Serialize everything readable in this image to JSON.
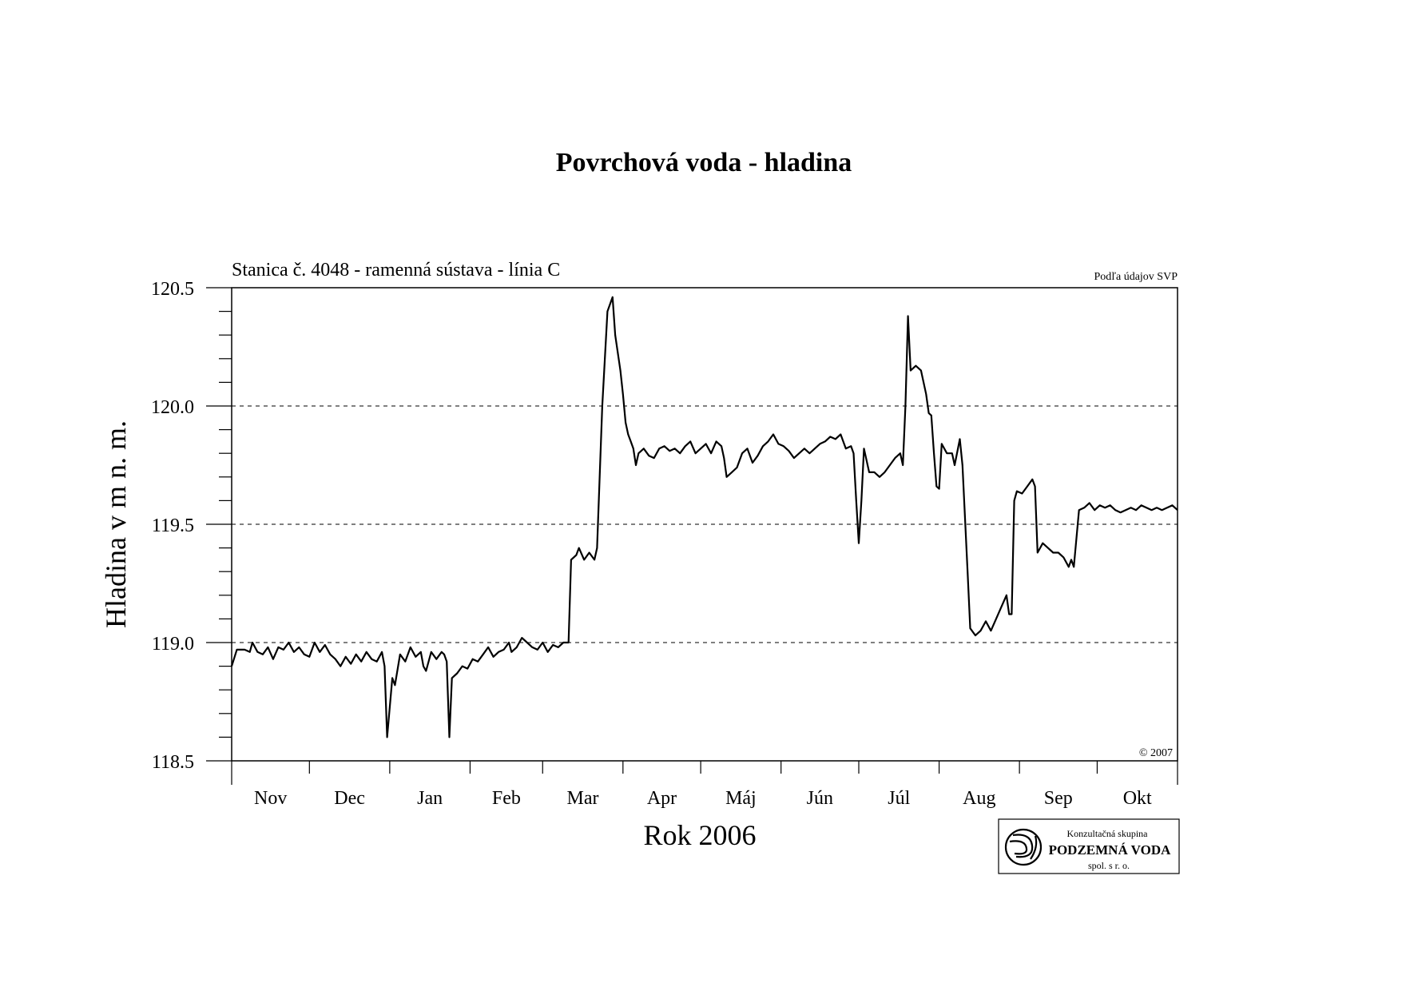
{
  "chart_data": {
    "type": "line",
    "title": "Povrchová voda - hladina",
    "subtitle": "Stanica č. 4048 - ramenná sústava - línia C",
    "source_note": "Podľa údajov SVP",
    "copyright": "© 2007",
    "xlabel": "Rok 2006",
    "ylabel": "Hladina v m n. m.",
    "ylim": [
      118.5,
      120.5
    ],
    "yticks": [
      "118.5",
      "119.0",
      "119.5",
      "120.0",
      "120.5"
    ],
    "grid": "horizontal dashed at 119.0, 119.5, 120.0, 120.5",
    "months": [
      "Nov",
      "Dec",
      "Jan",
      "Feb",
      "Mar",
      "Apr",
      "Máj",
      "Jún",
      "Júl",
      "Aug",
      "Sep",
      "Okt"
    ],
    "x_unit": "day index from 1 Nov 2005 (0-365)",
    "series": [
      {
        "values": [
          [
            0,
            118.9
          ],
          [
            2,
            118.97
          ],
          [
            5,
            118.97
          ],
          [
            7,
            118.96
          ],
          [
            8,
            119.0
          ],
          [
            10,
            118.96
          ],
          [
            12,
            118.95
          ],
          [
            14,
            118.98
          ],
          [
            16,
            118.93
          ],
          [
            18,
            118.98
          ],
          [
            20,
            118.97
          ],
          [
            22,
            119.0
          ],
          [
            24,
            118.96
          ],
          [
            26,
            118.98
          ],
          [
            28,
            118.95
          ],
          [
            30,
            118.94
          ],
          [
            32,
            119.0
          ],
          [
            34,
            118.96
          ],
          [
            36,
            118.99
          ],
          [
            38,
            118.95
          ],
          [
            40,
            118.93
          ],
          [
            42,
            118.9
          ],
          [
            44,
            118.94
          ],
          [
            46,
            118.91
          ],
          [
            48,
            118.95
          ],
          [
            50,
            118.92
          ],
          [
            52,
            118.96
          ],
          [
            54,
            118.93
          ],
          [
            56,
            118.92
          ],
          [
            58,
            118.96
          ],
          [
            59,
            118.9
          ],
          [
            60,
            118.6
          ],
          [
            62,
            118.85
          ],
          [
            63,
            118.82
          ],
          [
            65,
            118.95
          ],
          [
            67,
            118.92
          ],
          [
            69,
            118.98
          ],
          [
            71,
            118.94
          ],
          [
            73,
            118.96
          ],
          [
            74,
            118.9
          ],
          [
            75,
            118.88
          ],
          [
            77,
            118.96
          ],
          [
            79,
            118.93
          ],
          [
            81,
            118.96
          ],
          [
            82,
            118.95
          ],
          [
            83,
            118.92
          ],
          [
            84,
            118.6
          ],
          [
            85,
            118.85
          ],
          [
            87,
            118.87
          ],
          [
            89,
            118.9
          ],
          [
            91,
            118.89
          ],
          [
            93,
            118.93
          ],
          [
            95,
            118.92
          ],
          [
            97,
            118.95
          ],
          [
            99,
            118.98
          ],
          [
            101,
            118.94
          ],
          [
            103,
            118.96
          ],
          [
            105,
            118.97
          ],
          [
            107,
            119.0
          ],
          [
            108,
            118.96
          ],
          [
            110,
            118.98
          ],
          [
            112,
            119.02
          ],
          [
            114,
            119.0
          ],
          [
            116,
            118.98
          ],
          [
            118,
            118.97
          ],
          [
            120,
            119.0
          ],
          [
            122,
            118.96
          ],
          [
            124,
            118.99
          ],
          [
            126,
            118.98
          ],
          [
            128,
            119.0
          ],
          [
            130,
            119.0
          ],
          [
            131,
            119.35
          ],
          [
            133,
            119.37
          ],
          [
            134,
            119.4
          ],
          [
            136,
            119.35
          ],
          [
            138,
            119.38
          ],
          [
            140,
            119.35
          ],
          [
            141,
            119.4
          ],
          [
            143,
            120.0
          ],
          [
            145,
            120.4
          ],
          [
            147,
            120.46
          ],
          [
            148,
            120.3
          ],
          [
            150,
            120.15
          ],
          [
            151,
            120.05
          ],
          [
            152,
            119.93
          ],
          [
            153,
            119.88
          ],
          [
            154,
            119.85
          ],
          [
            155,
            119.82
          ],
          [
            156,
            119.75
          ],
          [
            157,
            119.8
          ],
          [
            159,
            119.82
          ],
          [
            161,
            119.79
          ],
          [
            163,
            119.78
          ],
          [
            165,
            119.82
          ],
          [
            167,
            119.83
          ],
          [
            169,
            119.81
          ],
          [
            171,
            119.82
          ],
          [
            173,
            119.8
          ],
          [
            175,
            119.83
          ],
          [
            177,
            119.85
          ],
          [
            179,
            119.8
          ],
          [
            181,
            119.82
          ],
          [
            183,
            119.84
          ],
          [
            185,
            119.8
          ],
          [
            187,
            119.85
          ],
          [
            189,
            119.83
          ],
          [
            190,
            119.78
          ],
          [
            191,
            119.7
          ],
          [
            193,
            119.72
          ],
          [
            195,
            119.74
          ],
          [
            197,
            119.8
          ],
          [
            199,
            119.82
          ],
          [
            201,
            119.76
          ],
          [
            203,
            119.79
          ],
          [
            205,
            119.83
          ],
          [
            207,
            119.85
          ],
          [
            209,
            119.88
          ],
          [
            211,
            119.84
          ],
          [
            213,
            119.83
          ],
          [
            215,
            119.81
          ],
          [
            217,
            119.78
          ],
          [
            219,
            119.8
          ],
          [
            221,
            119.82
          ],
          [
            223,
            119.8
          ],
          [
            225,
            119.82
          ],
          [
            227,
            119.84
          ],
          [
            229,
            119.85
          ],
          [
            231,
            119.87
          ],
          [
            233,
            119.86
          ],
          [
            235,
            119.88
          ],
          [
            237,
            119.82
          ],
          [
            239,
            119.83
          ],
          [
            240,
            119.8
          ],
          [
            241,
            119.6
          ],
          [
            242,
            119.42
          ],
          [
            243,
            119.6
          ],
          [
            244,
            119.82
          ],
          [
            246,
            119.72
          ],
          [
            248,
            119.72
          ],
          [
            250,
            119.7
          ],
          [
            252,
            119.72
          ],
          [
            254,
            119.75
          ],
          [
            256,
            119.78
          ],
          [
            258,
            119.8
          ],
          [
            259,
            119.75
          ],
          [
            260,
            120.0
          ],
          [
            261,
            120.38
          ],
          [
            262,
            120.15
          ],
          [
            264,
            120.17
          ],
          [
            266,
            120.15
          ],
          [
            268,
            120.05
          ],
          [
            269,
            119.97
          ],
          [
            270,
            119.96
          ],
          [
            271,
            119.8
          ],
          [
            272,
            119.66
          ],
          [
            273,
            119.65
          ],
          [
            274,
            119.84
          ],
          [
            276,
            119.8
          ],
          [
            278,
            119.8
          ],
          [
            279,
            119.75
          ],
          [
            281,
            119.86
          ],
          [
            282,
            119.75
          ],
          [
            284,
            119.3
          ],
          [
            285,
            119.06
          ],
          [
            287,
            119.03
          ],
          [
            289,
            119.05
          ],
          [
            291,
            119.09
          ],
          [
            293,
            119.05
          ],
          [
            295,
            119.1
          ],
          [
            297,
            119.15
          ],
          [
            299,
            119.2
          ],
          [
            300,
            119.12
          ],
          [
            301,
            119.12
          ],
          [
            302,
            119.6
          ],
          [
            303,
            119.64
          ],
          [
            305,
            119.63
          ],
          [
            307,
            119.66
          ],
          [
            309,
            119.69
          ],
          [
            310,
            119.66
          ],
          [
            311,
            119.38
          ],
          [
            313,
            119.42
          ],
          [
            315,
            119.4
          ],
          [
            317,
            119.38
          ],
          [
            319,
            119.38
          ],
          [
            321,
            119.36
          ],
          [
            323,
            119.32
          ],
          [
            324,
            119.35
          ],
          [
            325,
            119.32
          ],
          [
            327,
            119.56
          ],
          [
            329,
            119.57
          ],
          [
            331,
            119.59
          ],
          [
            333,
            119.56
          ],
          [
            335,
            119.58
          ],
          [
            337,
            119.57
          ],
          [
            339,
            119.58
          ],
          [
            341,
            119.56
          ],
          [
            343,
            119.55
          ],
          [
            345,
            119.56
          ],
          [
            347,
            119.57
          ],
          [
            349,
            119.56
          ],
          [
            351,
            119.58
          ],
          [
            353,
            119.57
          ],
          [
            355,
            119.56
          ],
          [
            357,
            119.57
          ],
          [
            359,
            119.56
          ],
          [
            361,
            119.57
          ],
          [
            363,
            119.58
          ],
          [
            365,
            119.56
          ]
        ]
      }
    ]
  },
  "logo": {
    "line1": "Konzultačná skupina",
    "line2": "PODZEMNÁ VODA",
    "line3": "spol. s r. o."
  }
}
